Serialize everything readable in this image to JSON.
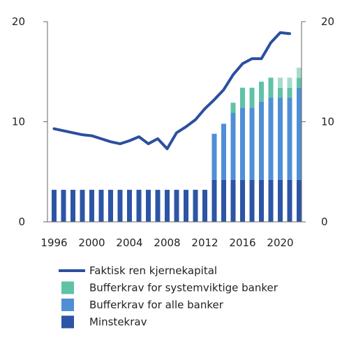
{
  "chart_data": {
    "type": "bar",
    "x": [
      1996,
      1997,
      1998,
      1999,
      2000,
      2001,
      2002,
      2003,
      2004,
      2005,
      2006,
      2007,
      2008,
      2009,
      2010,
      2011,
      2012,
      2013,
      2014,
      2015,
      2016,
      2017,
      2018,
      2019,
      2020,
      2021,
      2022
    ],
    "x_ticks": [
      "1996",
      "2000",
      "2004",
      "2008",
      "2012",
      "2016",
      "2020"
    ],
    "y_ticks": [
      "0",
      "10",
      "20"
    ],
    "ylim": [
      0,
      20
    ],
    "grid": false,
    "legend_position": "bottom",
    "legend": [
      {
        "label": "Faktisk ren kjernekapital",
        "kind": "line",
        "color": "#2c4f9e"
      },
      {
        "label": "Bufferkrav for systemviktige banker",
        "kind": "box",
        "color": "#5fc2a6"
      },
      {
        "label": "Bufferkrav for alle banker",
        "kind": "box",
        "color": "#4f8fd6"
      },
      {
        "label": "Minstekrav",
        "kind": "box",
        "color": "#2d55a5"
      }
    ],
    "series": [
      {
        "name": "Minstekrav",
        "type": "bar",
        "color": "#2d55a5",
        "values": [
          3.2,
          3.2,
          3.2,
          3.2,
          3.2,
          3.2,
          3.2,
          3.2,
          3.2,
          3.2,
          3.2,
          3.2,
          3.2,
          3.2,
          3.2,
          3.2,
          3.2,
          4.2,
          4.2,
          4.2,
          4.2,
          4.2,
          4.2,
          4.2,
          4.2,
          4.2,
          4.2
        ]
      },
      {
        "name": "Bufferkrav for alle banker",
        "type": "bar",
        "color": "#4f8fd6",
        "values": [
          0,
          0,
          0,
          0,
          0,
          0,
          0,
          0,
          0,
          0,
          0,
          0,
          0,
          0,
          0,
          0,
          0,
          4.6,
          5.6,
          6.7,
          7.2,
          7.2,
          7.8,
          8.2,
          8.2,
          8.2,
          9.2
        ]
      },
      {
        "name": "Bufferkrav for systemviktige banker",
        "type": "bar",
        "color": "#5fc2a6",
        "values": [
          0,
          0,
          0,
          0,
          0,
          0,
          0,
          0,
          0,
          0,
          0,
          0,
          0,
          0,
          0,
          0,
          0,
          0,
          0,
          1.0,
          2.0,
          2.0,
          2.0,
          2.0,
          1.0,
          1.0,
          1.0
        ]
      },
      {
        "name": "",
        "type": "bar",
        "color": "#a7dccb",
        "values": [
          0,
          0,
          0,
          0,
          0,
          0,
          0,
          0,
          0,
          0,
          0,
          0,
          0,
          0,
          0,
          0,
          0,
          0,
          0,
          0,
          0,
          0,
          0,
          0,
          1.0,
          1.0,
          1.0
        ]
      },
      {
        "name": "Faktisk ren kjernekapital",
        "type": "line",
        "color": "#2c4f9e",
        "x": [
          1996,
          1997,
          1998,
          1999,
          2000,
          2001,
          2002,
          2003,
          2004,
          2005,
          2006,
          2007,
          2008,
          2009,
          2010,
          2011,
          2012,
          2013,
          2014,
          2015,
          2016,
          2017,
          2018,
          2019,
          2020,
          2021
        ],
        "values": [
          9.3,
          9.1,
          8.9,
          8.7,
          8.6,
          8.3,
          8.0,
          7.8,
          8.1,
          8.5,
          7.8,
          8.3,
          7.3,
          8.9,
          9.5,
          10.2,
          11.3,
          12.2,
          13.2,
          14.7,
          15.8,
          16.3,
          16.3,
          17.9,
          18.9,
          18.8
        ]
      }
    ]
  }
}
